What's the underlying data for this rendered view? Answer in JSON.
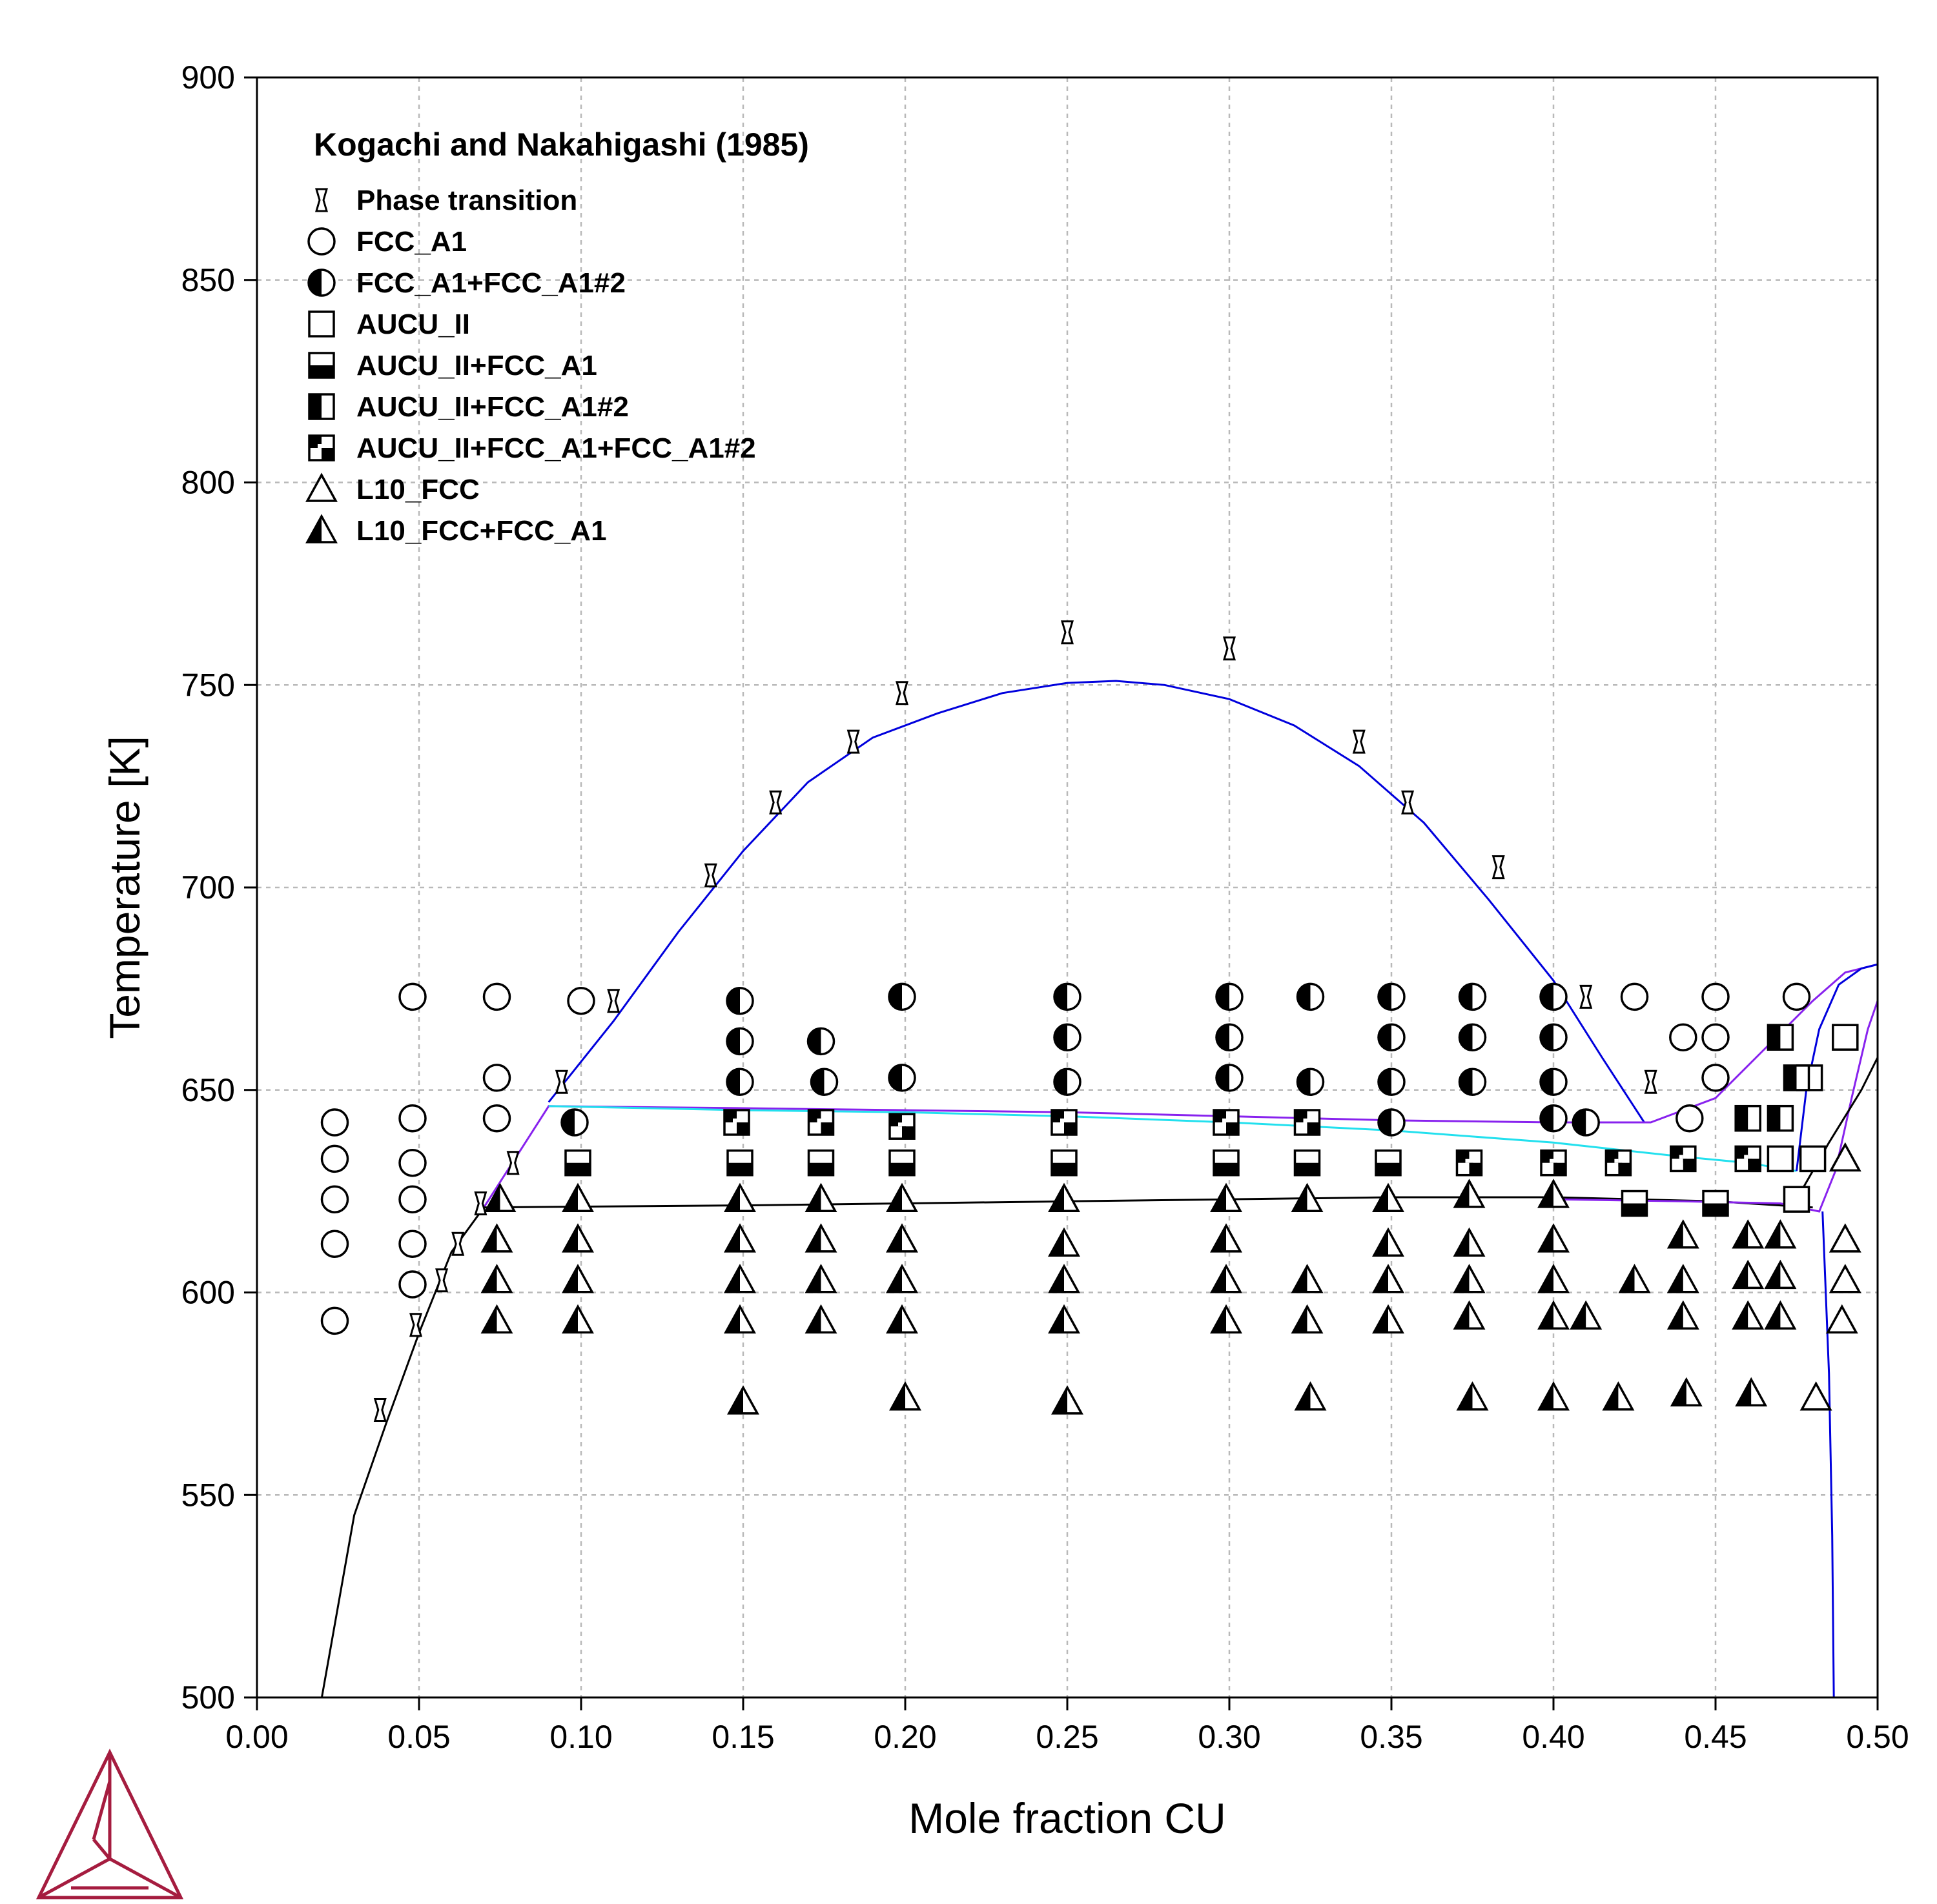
{
  "chart_data": {
    "type": "scatter",
    "title": "",
    "xlabel": "Mole fraction CU",
    "ylabel": "Temperature [K]",
    "xlim": [
      0.0,
      0.5
    ],
    "ylim": [
      500,
      900
    ],
    "grid": true,
    "x_ticks": [
      "0.00",
      "0.05",
      "0.10",
      "0.15",
      "0.20",
      "0.25",
      "0.30",
      "0.35",
      "0.40",
      "0.45",
      "0.50"
    ],
    "y_ticks": [
      "500",
      "550",
      "600",
      "650",
      "700",
      "750",
      "800",
      "850",
      "900"
    ],
    "legend": {
      "title": "Kogachi and Nakahigashi (1985)",
      "placement": "top-left",
      "entries": [
        {
          "label": "Phase transition",
          "marker": "hourglass"
        },
        {
          "label": "FCC_A1",
          "marker": "circle-open"
        },
        {
          "label": "FCC_A1+FCC_A1#2",
          "marker": "circle-half-left"
        },
        {
          "label": "AUCU_II",
          "marker": "square-open"
        },
        {
          "label": "AUCU_II+FCC_A1",
          "marker": "square-half-bottom"
        },
        {
          "label": "AUCU_II+FCC_A1#2",
          "marker": "square-half-left"
        },
        {
          "label": "AUCU_II+FCC_A1+FCC_A1#2",
          "marker": "square-checker"
        },
        {
          "label": "L10_FCC",
          "marker": "triangle-open"
        },
        {
          "label": "L10_FCC+FCC_A1",
          "marker": "triangle-half-left"
        }
      ]
    },
    "phase_boundaries": [
      {
        "color": "#0000dd",
        "points": [
          [
            0.09,
            647
          ],
          [
            0.11,
            667
          ],
          [
            0.13,
            689
          ],
          [
            0.15,
            709
          ],
          [
            0.17,
            726
          ],
          [
            0.19,
            737
          ],
          [
            0.21,
            743
          ],
          [
            0.23,
            748
          ],
          [
            0.25,
            750.5
          ],
          [
            0.265,
            751
          ],
          [
            0.28,
            750
          ],
          [
            0.3,
            746.5
          ],
          [
            0.32,
            740
          ],
          [
            0.34,
            730
          ],
          [
            0.36,
            716
          ],
          [
            0.38,
            697
          ],
          [
            0.4,
            677
          ],
          [
            0.415,
            658
          ],
          [
            0.428,
            642
          ]
        ]
      },
      {
        "color": "#8822ee",
        "points": [
          [
            0.07,
            621
          ],
          [
            0.09,
            646
          ],
          [
            0.15,
            645.5
          ],
          [
            0.2,
            645
          ],
          [
            0.25,
            644.5
          ],
          [
            0.3,
            643.5
          ],
          [
            0.35,
            642.5
          ],
          [
            0.4,
            642
          ],
          [
            0.43,
            642
          ],
          [
            0.45,
            648
          ],
          [
            0.465,
            660
          ],
          [
            0.48,
            672
          ],
          [
            0.49,
            679
          ],
          [
            0.5,
            681
          ]
        ]
      },
      {
        "color": "#22e0ee",
        "points": [
          [
            0.09,
            646
          ],
          [
            0.15,
            645
          ],
          [
            0.2,
            644.5
          ],
          [
            0.25,
            643.5
          ],
          [
            0.3,
            642
          ],
          [
            0.35,
            640
          ],
          [
            0.4,
            637
          ],
          [
            0.44,
            633.5
          ],
          [
            0.46,
            632
          ],
          [
            0.475,
            630
          ]
        ]
      },
      {
        "color": "#000000",
        "points": [
          [
            0.02,
            500
          ],
          [
            0.03,
            545
          ],
          [
            0.04,
            568
          ],
          [
            0.05,
            590
          ],
          [
            0.06,
            610
          ],
          [
            0.07,
            621
          ],
          [
            0.15,
            621.5
          ],
          [
            0.2,
            622
          ],
          [
            0.25,
            622.5
          ],
          [
            0.3,
            623
          ],
          [
            0.35,
            623.5
          ],
          [
            0.4,
            623.5
          ],
          [
            0.45,
            622.5
          ],
          [
            0.47,
            621.5
          ],
          [
            0.48,
            621
          ]
        ]
      },
      {
        "color": "#8822ee",
        "points": [
          [
            0.4,
            623
          ],
          [
            0.44,
            622.5
          ],
          [
            0.47,
            622
          ],
          [
            0.482,
            620
          ],
          [
            0.487,
            630
          ],
          [
            0.492,
            648
          ],
          [
            0.497,
            665
          ],
          [
            0.5,
            672
          ]
        ]
      },
      {
        "color": "#0000dd",
        "points": [
          [
            0.475,
            630
          ],
          [
            0.478,
            650
          ],
          [
            0.482,
            665
          ],
          [
            0.488,
            676
          ],
          [
            0.495,
            680
          ],
          [
            0.5,
            681
          ]
        ]
      },
      {
        "color": "#0000dd",
        "points": [
          [
            0.483,
            620
          ],
          [
            0.485,
            580
          ],
          [
            0.486,
            540
          ],
          [
            0.4865,
            500
          ]
        ]
      },
      {
        "color": "#000000",
        "points": [
          [
            0.475,
            623
          ],
          [
            0.485,
            637
          ],
          [
            0.495,
            650
          ],
          [
            0.5,
            658
          ]
        ]
      }
    ],
    "series": [
      {
        "name": "Phase transition",
        "marker": "hourglass",
        "points": [
          [
            0.038,
            571
          ],
          [
            0.049,
            592
          ],
          [
            0.057,
            603
          ],
          [
            0.062,
            612
          ],
          [
            0.069,
            622
          ],
          [
            0.079,
            632
          ],
          [
            0.094,
            652
          ],
          [
            0.11,
            672
          ],
          [
            0.14,
            703
          ],
          [
            0.16,
            721
          ],
          [
            0.184,
            736
          ],
          [
            0.199,
            748
          ],
          [
            0.25,
            763
          ],
          [
            0.3,
            759
          ],
          [
            0.34,
            736
          ],
          [
            0.355,
            721
          ],
          [
            0.383,
            705
          ],
          [
            0.41,
            673
          ],
          [
            0.43,
            652
          ]
        ]
      },
      {
        "name": "FCC_A1",
        "marker": "circle-open",
        "points": [
          [
            0.024,
            593
          ],
          [
            0.024,
            612
          ],
          [
            0.024,
            623
          ],
          [
            0.024,
            633
          ],
          [
            0.024,
            642
          ],
          [
            0.048,
            602
          ],
          [
            0.048,
            612
          ],
          [
            0.048,
            623
          ],
          [
            0.048,
            632
          ],
          [
            0.048,
            643
          ],
          [
            0.048,
            673
          ],
          [
            0.074,
            643
          ],
          [
            0.074,
            653
          ],
          [
            0.074,
            673
          ],
          [
            0.1,
            672
          ],
          [
            0.425,
            673
          ],
          [
            0.44,
            663
          ],
          [
            0.442,
            643
          ],
          [
            0.45,
            673
          ],
          [
            0.45,
            663
          ],
          [
            0.45,
            653
          ],
          [
            0.475,
            673
          ]
        ]
      },
      {
        "name": "FCC_A1+FCC_A1#2",
        "marker": "circle-half-left",
        "points": [
          [
            0.098,
            642
          ],
          [
            0.149,
            672
          ],
          [
            0.149,
            662
          ],
          [
            0.149,
            652
          ],
          [
            0.174,
            662
          ],
          [
            0.175,
            652
          ],
          [
            0.199,
            673
          ],
          [
            0.199,
            653
          ],
          [
            0.25,
            673
          ],
          [
            0.25,
            663
          ],
          [
            0.25,
            652
          ],
          [
            0.3,
            673
          ],
          [
            0.3,
            663
          ],
          [
            0.3,
            653
          ],
          [
            0.325,
            673
          ],
          [
            0.325,
            652
          ],
          [
            0.35,
            673
          ],
          [
            0.35,
            663
          ],
          [
            0.35,
            652
          ],
          [
            0.35,
            642
          ],
          [
            0.375,
            673
          ],
          [
            0.375,
            663
          ],
          [
            0.375,
            652
          ],
          [
            0.4,
            673
          ],
          [
            0.4,
            663
          ],
          [
            0.4,
            652
          ],
          [
            0.4,
            643
          ],
          [
            0.41,
            642
          ]
        ]
      },
      {
        "name": "AUCU_II",
        "marker": "square-open",
        "points": [
          [
            0.47,
            633
          ],
          [
            0.48,
            633
          ],
          [
            0.475,
            623
          ],
          [
            0.49,
            663
          ],
          [
            0.479,
            653
          ]
        ]
      },
      {
        "name": "AUCU_II+FCC_A1",
        "marker": "square-half-bottom",
        "points": [
          [
            0.099,
            632
          ],
          [
            0.149,
            632
          ],
          [
            0.174,
            632
          ],
          [
            0.199,
            632
          ],
          [
            0.249,
            632
          ],
          [
            0.299,
            632
          ],
          [
            0.324,
            632
          ],
          [
            0.349,
            632
          ],
          [
            0.425,
            622
          ],
          [
            0.45,
            622
          ]
        ]
      },
      {
        "name": "AUCU_II+FCC_A1#2",
        "marker": "square-half-left",
        "points": [
          [
            0.47,
            663
          ],
          [
            0.475,
            653
          ],
          [
            0.46,
            643
          ],
          [
            0.47,
            643
          ]
        ]
      },
      {
        "name": "AUCU_II+FCC_A1+FCC_A1#2",
        "marker": "square-checker",
        "points": [
          [
            0.148,
            642
          ],
          [
            0.174,
            642
          ],
          [
            0.199,
            641
          ],
          [
            0.249,
            642
          ],
          [
            0.299,
            642
          ],
          [
            0.324,
            642
          ],
          [
            0.374,
            632
          ],
          [
            0.4,
            632
          ],
          [
            0.42,
            632
          ],
          [
            0.44,
            633
          ],
          [
            0.46,
            633
          ]
        ]
      },
      {
        "name": "L10_FCC",
        "marker": "triangle-open",
        "points": [
          [
            0.49,
            633
          ],
          [
            0.49,
            613
          ],
          [
            0.49,
            603
          ],
          [
            0.489,
            593
          ],
          [
            0.481,
            574
          ]
        ]
      },
      {
        "name": "L10_FCC+FCC_A1",
        "marker": "triangle-half-left",
        "points": [
          [
            0.075,
            623
          ],
          [
            0.074,
            613
          ],
          [
            0.074,
            603
          ],
          [
            0.074,
            593
          ],
          [
            0.099,
            623
          ],
          [
            0.099,
            613
          ],
          [
            0.099,
            603
          ],
          [
            0.099,
            593
          ],
          [
            0.149,
            623
          ],
          [
            0.149,
            613
          ],
          [
            0.149,
            603
          ],
          [
            0.149,
            593
          ],
          [
            0.15,
            573
          ],
          [
            0.174,
            623
          ],
          [
            0.174,
            613
          ],
          [
            0.174,
            603
          ],
          [
            0.174,
            593
          ],
          [
            0.199,
            623
          ],
          [
            0.199,
            613
          ],
          [
            0.199,
            603
          ],
          [
            0.199,
            593
          ],
          [
            0.2,
            574
          ],
          [
            0.249,
            623
          ],
          [
            0.249,
            612
          ],
          [
            0.249,
            603
          ],
          [
            0.249,
            593
          ],
          [
            0.25,
            573
          ],
          [
            0.299,
            623
          ],
          [
            0.299,
            613
          ],
          [
            0.299,
            603
          ],
          [
            0.299,
            593
          ],
          [
            0.324,
            623
          ],
          [
            0.324,
            603
          ],
          [
            0.324,
            593
          ],
          [
            0.325,
            574
          ],
          [
            0.349,
            623
          ],
          [
            0.349,
            612
          ],
          [
            0.349,
            603
          ],
          [
            0.349,
            593
          ],
          [
            0.374,
            624
          ],
          [
            0.374,
            612
          ],
          [
            0.374,
            603
          ],
          [
            0.374,
            594
          ],
          [
            0.375,
            574
          ],
          [
            0.4,
            624
          ],
          [
            0.4,
            613
          ],
          [
            0.4,
            603
          ],
          [
            0.4,
            594
          ],
          [
            0.4,
            574
          ],
          [
            0.41,
            594
          ],
          [
            0.42,
            574
          ],
          [
            0.425,
            603
          ],
          [
            0.44,
            614
          ],
          [
            0.44,
            603
          ],
          [
            0.44,
            594
          ],
          [
            0.441,
            575
          ],
          [
            0.46,
            614
          ],
          [
            0.46,
            604
          ],
          [
            0.46,
            594
          ],
          [
            0.461,
            575
          ],
          [
            0.47,
            614
          ],
          [
            0.47,
            604
          ],
          [
            0.47,
            594
          ]
        ]
      }
    ]
  }
}
